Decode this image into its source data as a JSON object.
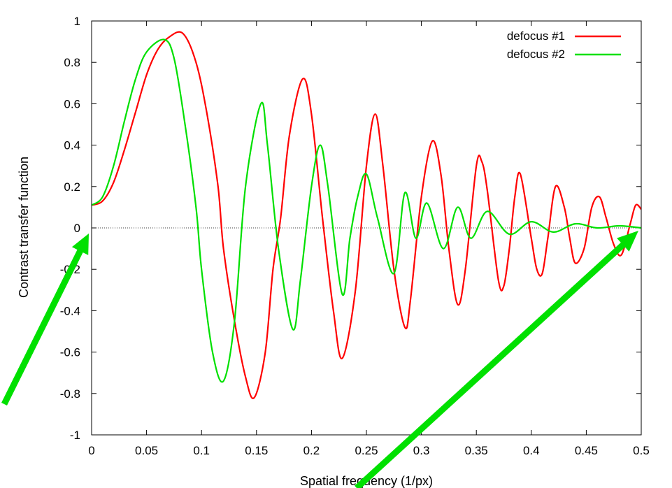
{
  "chart_data": {
    "type": "line",
    "xlabel": "Spatial frequency (1/px)",
    "ylabel": "Contrast transfer function",
    "xlim": [
      0,
      0.5
    ],
    "ylim": [
      -1,
      1
    ],
    "x_ticks": [
      "0",
      "0.05",
      "0.1",
      "0.15",
      "0.2",
      "0.25",
      "0.3",
      "0.35",
      "0.4",
      "0.45",
      "0.5"
    ],
    "y_ticks": [
      "-1",
      "-0.8",
      "-0.6",
      "-0.4",
      "-0.2",
      "0",
      "0.2",
      "0.4",
      "0.6",
      "0.8",
      "1"
    ],
    "legend_position": "top-right",
    "zero_line": true,
    "series": [
      {
        "name": "defocus #1",
        "color": "#ff0000",
        "x": [
          0,
          0.01,
          0.02,
          0.03,
          0.04,
          0.05,
          0.06,
          0.07,
          0.083,
          0.095,
          0.105,
          0.115,
          0.12,
          0.13,
          0.14,
          0.148,
          0.158,
          0.165,
          0.172,
          0.18,
          0.192,
          0.2,
          0.21,
          0.22,
          0.228,
          0.24,
          0.25,
          0.258,
          0.265,
          0.275,
          0.285,
          0.29,
          0.3,
          0.31,
          0.318,
          0.325,
          0.333,
          0.34,
          0.35,
          0.355,
          0.36,
          0.37,
          0.375,
          0.38,
          0.385,
          0.39,
          0.4,
          0.405,
          0.41,
          0.415,
          0.422,
          0.43,
          0.435,
          0.44,
          0.448,
          0.455,
          0.462,
          0.468,
          0.475,
          0.482,
          0.49,
          0.495,
          0.5
        ],
        "y": [
          0.11,
          0.13,
          0.22,
          0.38,
          0.56,
          0.74,
          0.86,
          0.92,
          0.94,
          0.8,
          0.55,
          0.2,
          -0.1,
          -0.45,
          -0.72,
          -0.82,
          -0.6,
          -0.2,
          0.05,
          0.45,
          0.72,
          0.55,
          0.05,
          -0.4,
          -0.63,
          -0.3,
          0.3,
          0.55,
          0.3,
          -0.2,
          -0.48,
          -0.35,
          0.15,
          0.42,
          0.25,
          -0.1,
          -0.37,
          -0.2,
          0.3,
          0.32,
          0.18,
          -0.25,
          -0.28,
          -0.1,
          0.15,
          0.26,
          -0.05,
          -0.2,
          -0.22,
          -0.05,
          0.2,
          0.1,
          -0.05,
          -0.17,
          -0.1,
          0.1,
          0.15,
          0.05,
          -0.08,
          -0.13,
          0.02,
          0.11,
          0.09
        ]
      },
      {
        "name": "defocus #2",
        "color": "#00e000",
        "x": [
          0,
          0.01,
          0.02,
          0.03,
          0.04,
          0.05,
          0.066,
          0.075,
          0.085,
          0.095,
          0.1,
          0.11,
          0.12,
          0.13,
          0.14,
          0.154,
          0.16,
          0.17,
          0.183,
          0.19,
          0.2,
          0.208,
          0.215,
          0.228,
          0.235,
          0.242,
          0.25,
          0.26,
          0.275,
          0.285,
          0.295,
          0.305,
          0.32,
          0.333,
          0.345,
          0.36,
          0.38,
          0.4,
          0.42,
          0.44,
          0.46,
          0.48,
          0.5
        ],
        "y": [
          0.11,
          0.15,
          0.3,
          0.52,
          0.72,
          0.85,
          0.91,
          0.82,
          0.5,
          0.1,
          -0.2,
          -0.6,
          -0.74,
          -0.45,
          0.2,
          0.6,
          0.4,
          -0.1,
          -0.49,
          -0.25,
          0.2,
          0.4,
          0.2,
          -0.32,
          -0.05,
          0.15,
          0.26,
          0.05,
          -0.22,
          0.17,
          -0.05,
          0.12,
          -0.1,
          0.1,
          -0.05,
          0.08,
          -0.03,
          0.03,
          -0.02,
          0.02,
          0.0,
          0.01,
          0.0
        ]
      }
    ]
  },
  "annotations": {
    "arrow_color": "#00e000"
  }
}
